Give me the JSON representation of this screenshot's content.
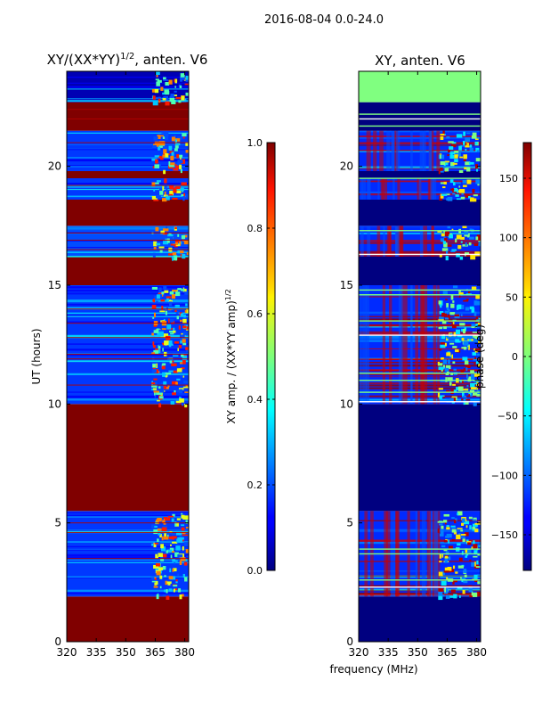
{
  "figure_title": "2016-08-04 0.0-24.0",
  "xlabel_shared": "frequency (MHz)",
  "chart_data": [
    {
      "type": "heatmap",
      "title_main": "XY/(XX*YY)",
      "title_sup": "1/2",
      "title_tail": ", anten. V6",
      "xlabel": "",
      "ylabel": "UT (hours)",
      "xlim": [
        320,
        382
      ],
      "ylim": [
        0,
        24
      ],
      "xticks": [
        "320",
        "335",
        "350",
        "365",
        "380"
      ],
      "xtick_values": [
        320,
        335,
        350,
        365,
        380
      ],
      "yticks": [
        "0",
        "5",
        "10",
        "15",
        "20"
      ],
      "ytick_values": [
        0,
        5,
        10,
        15,
        20
      ],
      "colorbar": {
        "label_main": "XY amp. / (XX*YY amp)",
        "label_sup": "1/2",
        "range": [
          0.0,
          1.0
        ],
        "ticks": [
          "0.0",
          "0.2",
          "0.4",
          "0.6",
          "0.8",
          "1.0"
        ],
        "tick_values": [
          0.0,
          0.2,
          0.4,
          0.6,
          0.8,
          1.0
        ]
      },
      "bands": [
        {
          "t0": 0.0,
          "t1": 1.9,
          "value": 1.0
        },
        {
          "t0": 1.9,
          "t1": 5.5,
          "value": 0.18
        },
        {
          "t0": 5.5,
          "t1": 10.0,
          "value": 1.0
        },
        {
          "t0": 10.0,
          "t1": 15.0,
          "value": 0.18
        },
        {
          "t0": 15.0,
          "t1": 16.2,
          "value": 1.0
        },
        {
          "t0": 16.2,
          "t1": 17.5,
          "value": 0.2
        },
        {
          "t0": 17.5,
          "t1": 18.6,
          "value": 1.0
        },
        {
          "t0": 18.6,
          "t1": 19.5,
          "value": 0.18
        },
        {
          "t0": 19.5,
          "t1": 19.8,
          "value": 1.0
        },
        {
          "t0": 19.8,
          "t1": 21.5,
          "value": 0.18
        },
        {
          "t0": 21.5,
          "t1": 22.7,
          "value": 1.0
        },
        {
          "t0": 22.7,
          "t1": 24.0,
          "value": 0.05
        }
      ],
      "rfi_freq_range": [
        363,
        381
      ]
    },
    {
      "type": "heatmap",
      "title_main": "XY, anten. V6",
      "title_sup": "",
      "title_tail": "",
      "xlabel": "frequency (MHz)",
      "ylabel": "",
      "xlim": [
        320,
        382
      ],
      "ylim": [
        0,
        24
      ],
      "xticks": [
        "320",
        "335",
        "350",
        "365",
        "380"
      ],
      "xtick_values": [
        320,
        335,
        350,
        365,
        380
      ],
      "yticks": [
        "0",
        "5",
        "10",
        "15",
        "20"
      ],
      "ytick_values": [
        0,
        5,
        10,
        15,
        20
      ],
      "colorbar": {
        "label_main": "phase (deg)",
        "label_sup": "",
        "range": [
          -180,
          180
        ],
        "ticks": [
          "−150",
          "−100",
          "−50",
          "0",
          "50",
          "100",
          "150"
        ],
        "tick_values": [
          -150,
          -100,
          -50,
          0,
          50,
          100,
          150
        ]
      },
      "bands": [
        {
          "t0": 0.0,
          "t1": 1.9,
          "value": -180
        },
        {
          "t0": 1.9,
          "t1": 5.5,
          "value": -120
        },
        {
          "t0": 5.5,
          "t1": 10.0,
          "value": -180
        },
        {
          "t0": 10.0,
          "t1": 15.0,
          "value": -120
        },
        {
          "t0": 15.0,
          "t1": 16.2,
          "value": -180
        },
        {
          "t0": 16.2,
          "t1": 17.5,
          "value": -120
        },
        {
          "t0": 17.5,
          "t1": 18.6,
          "value": -180
        },
        {
          "t0": 18.6,
          "t1": 19.5,
          "value": -120
        },
        {
          "t0": 19.5,
          "t1": 19.8,
          "value": -180
        },
        {
          "t0": 19.8,
          "t1": 21.5,
          "value": -120
        },
        {
          "t0": 21.5,
          "t1": 22.7,
          "value": -180
        },
        {
          "t0": 22.7,
          "t1": 24.0,
          "value": 0
        }
      ],
      "rfi_freq_range": [
        360,
        381
      ]
    }
  ]
}
